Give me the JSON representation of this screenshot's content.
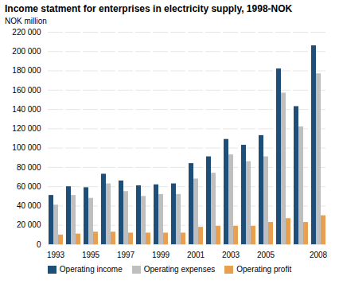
{
  "chart_data": {
    "type": "bar",
    "title": "Income statment for enterprises in electricity supply, 1998-NOK",
    "ylabel": "NOK million",
    "categories": [
      "1993",
      null,
      "1995",
      null,
      "1997",
      null,
      "1999",
      null,
      "2001",
      null,
      "2003",
      null,
      "2005",
      null,
      null,
      "2008"
    ],
    "series": [
      {
        "name": "Operating income",
        "color": "#1f4e79",
        "values": [
          51000,
          60000,
          59000,
          73000,
          66000,
          61000,
          62000,
          63000,
          84000,
          91000,
          109000,
          103000,
          113000,
          182000,
          143000,
          206000
        ]
      },
      {
        "name": "Operating expenses",
        "color": "#bfbfbf",
        "values": [
          41000,
          51000,
          48000,
          63000,
          55000,
          50000,
          52000,
          52000,
          68000,
          74000,
          93000,
          86000,
          91000,
          157000,
          122000,
          177000
        ]
      },
      {
        "name": "Operating profit",
        "color": "#e8a050",
        "values": [
          10000,
          11000,
          13000,
          13000,
          12000,
          12000,
          12000,
          12000,
          18000,
          19000,
          19000,
          19000,
          23000,
          27000,
          23000,
          30000
        ]
      }
    ],
    "ylim": [
      0,
      220000
    ],
    "yticks": [
      0,
      {
        "value": 20000,
        "label": "20 000"
      },
      {
        "value": 40000,
        "label": "40 000"
      },
      {
        "value": 60000,
        "label": "60 000"
      },
      {
        "value": 80000,
        "label": "80 000"
      },
      {
        "value": 100000,
        "label": "100 000"
      },
      {
        "value": 120000,
        "label": "120 000"
      },
      {
        "value": 140000,
        "label": "140 000"
      },
      {
        "value": 160000,
        "label": "160 000"
      },
      {
        "value": 180000,
        "label": "180 000"
      },
      {
        "value": 200000,
        "label": "200 000"
      },
      {
        "value": 220000,
        "label": "220 000"
      }
    ],
    "grid": true,
    "legend": "bottom"
  }
}
